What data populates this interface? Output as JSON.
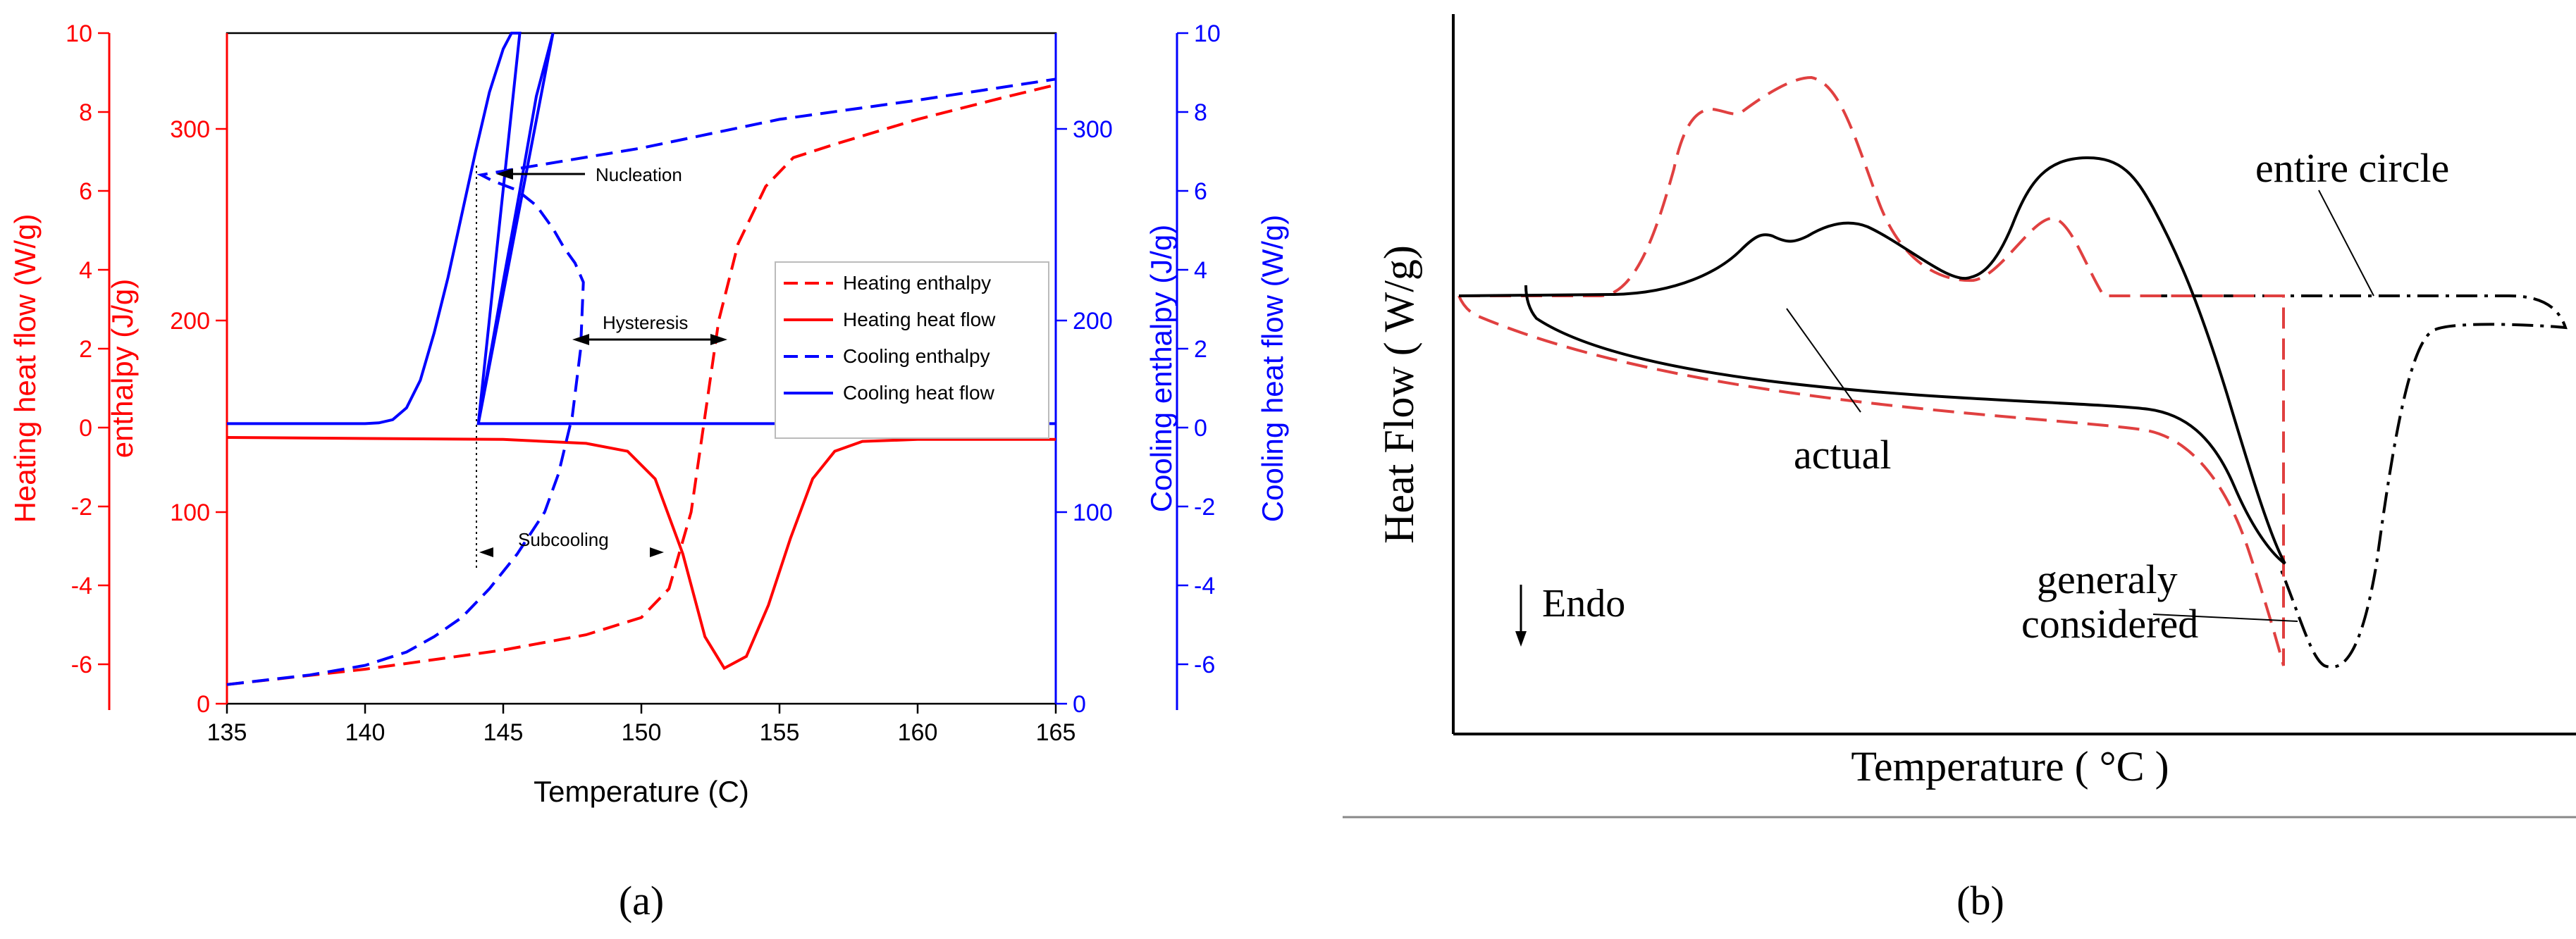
{
  "colors": {
    "heating": "#ff0000",
    "cooling": "#0000ff",
    "black": "#000000",
    "dash_red": "#e04040"
  },
  "panel_labels": {
    "a": "(a)",
    "b": "(b)"
  },
  "chart_data": [
    {
      "type": "line",
      "panel": "a",
      "xlabel": "Temperature (C)",
      "xlim": [
        135,
        165
      ],
      "x_ticks": [
        135,
        140,
        145,
        150,
        155,
        160,
        165
      ],
      "axes": {
        "heating_heat_flow": {
          "label": "Heating heat flow (W/g)",
          "range": [
            -7,
            10
          ],
          "ticks": [
            -6,
            -4,
            -2,
            0,
            2,
            4,
            6,
            8,
            10
          ]
        },
        "heating_enthalpy": {
          "label": "enthalpy (J/g)",
          "range": [
            0,
            350
          ],
          "ticks": [
            0,
            100,
            200,
            300
          ]
        },
        "cooling_enthalpy": {
          "label": "Cooling enthalpy (J/g)",
          "range": [
            0,
            350
          ],
          "ticks": [
            0,
            100,
            200,
            300
          ]
        },
        "cooling_heat_flow": {
          "label": "Cooling heat flow (W/g)",
          "range": [
            -7,
            10
          ],
          "ticks": [
            -6,
            -4,
            -2,
            0,
            2,
            4,
            6,
            8,
            10
          ]
        }
      },
      "series": [
        {
          "name": "Heating enthalpy",
          "style": "dashed",
          "color": "#ff0000",
          "axis": "heating_enthalpy",
          "x": [
            135,
            140,
            145,
            148,
            150,
            151,
            151.8,
            152.3,
            152.8,
            153.5,
            154.5,
            155.5,
            157,
            160,
            163,
            165
          ],
          "y": [
            10,
            18,
            28,
            36,
            45,
            60,
            100,
            150,
            200,
            240,
            270,
            285,
            292,
            305,
            316,
            323
          ]
        },
        {
          "name": "Heating heat flow",
          "style": "solid",
          "color": "#ff0000",
          "axis": "heating_heat_flow",
          "x": [
            135,
            145,
            148,
            149.5,
            150.5,
            151.5,
            152.3,
            153,
            153.8,
            154.6,
            155.4,
            156.2,
            157,
            158,
            160,
            165
          ],
          "y": [
            -0.25,
            -0.3,
            -0.4,
            -0.6,
            -1.3,
            -3.2,
            -5.3,
            -6.1,
            -5.8,
            -4.5,
            -2.8,
            -1.3,
            -0.6,
            -0.35,
            -0.3,
            -0.3
          ]
        },
        {
          "name": "Cooling enthalpy",
          "style": "dashed",
          "color": "#0000ff",
          "axis": "cooling_enthalpy",
          "x": [
            135,
            138,
            140,
            141.5,
            142.5,
            143.5,
            144.5,
            145.5,
            146.5,
            147,
            147.5,
            147.8,
            147.9,
            147.6,
            147.2,
            146.8,
            146.2,
            145.5,
            144.6,
            144.2,
            145,
            150,
            155,
            160,
            165
          ],
          "y": [
            10,
            15,
            20,
            27,
            35,
            45,
            60,
            78,
            100,
            120,
            150,
            185,
            220,
            230,
            238,
            248,
            260,
            268,
            273,
            276,
            278,
            290,
            305,
            315,
            326
          ]
        },
        {
          "name": "Cooling heat flow",
          "style": "solid",
          "color": "#0000ff",
          "axis": "cooling_heat_flow",
          "x": [
            135,
            140,
            140.5,
            141,
            141.5,
            142,
            142.5,
            143,
            143.5,
            144,
            144.5,
            145,
            145.3,
            145.6,
            144.1,
            144.1,
            145,
            145.6,
            146.2,
            146.8,
            144.1,
            165
          ],
          "y": [
            0.1,
            0.1,
            0.12,
            0.2,
            0.5,
            1.2,
            2.4,
            3.8,
            5.4,
            7,
            8.5,
            9.6,
            10,
            10,
            0.1,
            0.1,
            3.7,
            6,
            8.4,
            10,
            0.1,
            0.1
          ]
        }
      ],
      "legend": {
        "position": "right-middle",
        "entries": [
          "Heating enthalpy",
          "Heating heat flow",
          "Cooling enthalpy",
          "Cooling heat flow"
        ]
      },
      "annotations": {
        "nucleation": "Nucleation",
        "hysteresis": "Hysteresis",
        "subcooling": "Subcooling"
      }
    },
    {
      "type": "line",
      "panel": "b",
      "xlabel": "Temperature ( °C )",
      "ylabel": "Heat Flow ( W/g)",
      "units": "schematic (no numeric ticks)",
      "annotations": {
        "endo": "Endo",
        "actual": "actual",
        "entire_circle": "entire circle",
        "generaly": "generaly",
        "considered": "considered"
      },
      "series": [
        {
          "name": "actual",
          "style": "solid",
          "color": "#000000"
        },
        {
          "name": "generaly considered",
          "style": "dashed",
          "color": "#e04040"
        },
        {
          "name": "entire circle",
          "style": "dash-dot",
          "color": "#000000"
        }
      ]
    }
  ]
}
